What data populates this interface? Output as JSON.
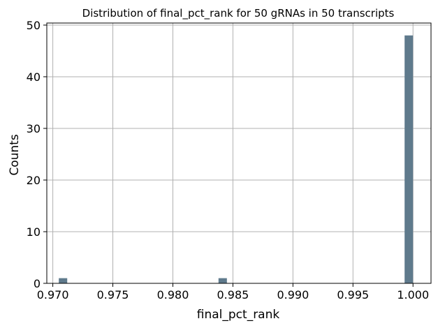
{
  "chart_data": {
    "type": "bar",
    "title": "Distribution of final_pct_rank for 50 gRNAs in 50 transcripts",
    "xlabel": "final_pct_rank",
    "ylabel": "Counts",
    "xlim": [
      0.9695,
      1.0015
    ],
    "ylim": [
      0,
      50.4
    ],
    "xticks": [
      0.97,
      0.975,
      0.98,
      0.985,
      0.99,
      0.995,
      1.0
    ],
    "xtick_labels": [
      "0.970",
      "0.975",
      "0.980",
      "0.985",
      "0.990",
      "0.995",
      "1.000"
    ],
    "yticks": [
      0,
      10,
      20,
      30,
      40,
      50
    ],
    "ytick_labels": [
      "0",
      "10",
      "20",
      "30",
      "40",
      "50"
    ],
    "grid": true,
    "bar_color": "#5f7a8c",
    "bins": [
      {
        "x0": 0.9705,
        "x1": 0.9712,
        "count": 1
      },
      {
        "x0": 0.9838,
        "x1": 0.9845,
        "count": 1
      },
      {
        "x0": 0.9993,
        "x1": 1.0,
        "count": 48
      }
    ]
  }
}
